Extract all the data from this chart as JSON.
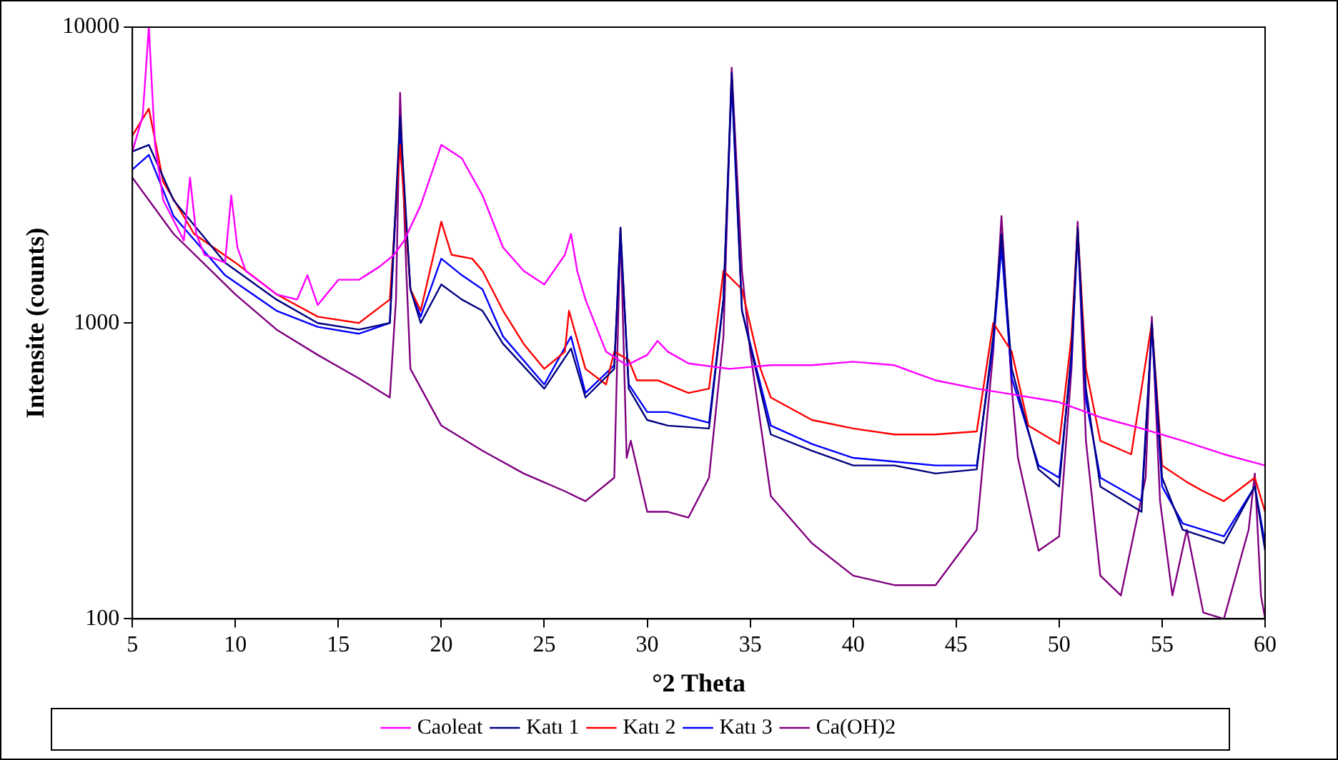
{
  "chart_data": {
    "type": "line",
    "xlabel": "°2 Theta",
    "ylabel": "Intensite (counts)",
    "xlim": [
      5,
      60
    ],
    "ylim": [
      100,
      10000
    ],
    "xticks": [
      5,
      10,
      15,
      20,
      25,
      30,
      35,
      40,
      45,
      50,
      55,
      60
    ],
    "yticks": [
      100,
      1000,
      10000
    ],
    "log": "y",
    "legend": "bottom",
    "series": [
      {
        "name": "Caoleat",
        "color": "#ff00ff",
        "x": [
          5,
          5.5,
          5.8,
          6.1,
          6.5,
          7.5,
          7.8,
          8.1,
          8.5,
          9.5,
          9.8,
          10.1,
          10.5,
          12,
          13,
          13.5,
          14,
          15,
          16,
          17,
          17.7,
          18.2,
          19,
          20,
          21,
          22,
          23,
          24,
          25,
          26,
          26.3,
          26.6,
          27,
          28,
          29,
          30,
          30.5,
          31,
          32,
          34,
          36,
          38,
          40,
          42,
          44,
          46,
          48,
          50,
          52,
          54,
          56,
          58,
          60
        ],
        "values": [
          3800,
          5000,
          10000,
          4000,
          2600,
          1900,
          3100,
          2000,
          1700,
          1600,
          2700,
          1800,
          1500,
          1250,
          1200,
          1450,
          1150,
          1400,
          1400,
          1550,
          1700,
          1900,
          2500,
          4000,
          3600,
          2700,
          1800,
          1500,
          1350,
          1700,
          2000,
          1500,
          1200,
          800,
          720,
          780,
          870,
          800,
          730,
          700,
          720,
          720,
          740,
          720,
          640,
          600,
          570,
          540,
          480,
          440,
          400,
          360,
          330
        ]
      },
      {
        "name": "Katı 1",
        "color": "#000080",
        "x": [
          5,
          5.8,
          7,
          9.5,
          12,
          14,
          16,
          17.5,
          18,
          18.5,
          19,
          20,
          21,
          22,
          23,
          25,
          26.3,
          27,
          28.4,
          28.7,
          29.1,
          30,
          31,
          33,
          33.7,
          34.1,
          34.6,
          36,
          38,
          40,
          42,
          44,
          46,
          46.8,
          47.2,
          47.7,
          49,
          50,
          50.6,
          50.9,
          51.3,
          52,
          54,
          54.5,
          55,
          56,
          58,
          59.5,
          60
        ],
        "values": [
          3800,
          4000,
          2600,
          1600,
          1200,
          1000,
          950,
          1000,
          5000,
          1300,
          1000,
          1350,
          1200,
          1100,
          850,
          600,
          820,
          560,
          700,
          2100,
          600,
          470,
          450,
          440,
          1200,
          7000,
          1100,
          420,
          370,
          330,
          330,
          310,
          320,
          900,
          2000,
          700,
          320,
          280,
          800,
          2100,
          600,
          280,
          230,
          1000,
          300,
          200,
          180,
          280,
          170
        ]
      },
      {
        "name": "Katı 2",
        "color": "#ff0000",
        "x": [
          5,
          5.8,
          6.5,
          8,
          10,
          12,
          14,
          16,
          17.5,
          18,
          18.5,
          19,
          20,
          20.5,
          21.5,
          22,
          23,
          24,
          25,
          26,
          26.2,
          27,
          28,
          28.4,
          28.7,
          29.1,
          29.5,
          30.5,
          32,
          33,
          33.7,
          34.1,
          34.6,
          35.5,
          36,
          38,
          40,
          42,
          44,
          46,
          46.8,
          47.2,
          47.7,
          48.5,
          50,
          50.6,
          50.9,
          51.3,
          52,
          53.5,
          54.5,
          55,
          56.2,
          57,
          58,
          59.5,
          60
        ],
        "values": [
          4300,
          5300,
          3000,
          2000,
          1600,
          1250,
          1050,
          1000,
          1200,
          4000,
          1300,
          1100,
          2200,
          1700,
          1650,
          1500,
          1100,
          850,
          700,
          800,
          1100,
          700,
          620,
          800,
          null,
          750,
          640,
          640,
          580,
          600,
          1500,
          null,
          1300,
          700,
          560,
          470,
          440,
          420,
          420,
          430,
          1000,
          null,
          800,
          450,
          390,
          900,
          2100,
          700,
          400,
          360,
          1000,
          330,
          290,
          270,
          250,
          300,
          230
        ]
      },
      {
        "name": "Katı 3",
        "color": "#0000ff",
        "x": [
          5,
          5.8,
          7,
          9.5,
          12,
          14,
          16,
          17.5,
          18,
          18.5,
          19,
          20,
          21,
          22,
          23,
          25,
          26.3,
          27,
          28.4,
          28.7,
          29.1,
          30,
          31,
          33,
          33.7,
          34.1,
          34.6,
          36,
          38,
          40,
          42,
          44,
          46,
          46.8,
          47.2,
          47.7,
          49,
          50,
          50.6,
          50.9,
          51.3,
          52,
          54,
          54.5,
          55,
          56,
          58,
          59.5,
          60
        ],
        "values": [
          3300,
          3700,
          2300,
          1450,
          1100,
          970,
          920,
          1000,
          4500,
          1300,
          1050,
          1650,
          1450,
          1300,
          900,
          620,
          900,
          580,
          720,
          2000,
          620,
          500,
          500,
          460,
          1200,
          6500,
          1100,
          450,
          390,
          350,
          340,
          330,
          330,
          850,
          1800,
          650,
          330,
          300,
          750,
          2000,
          550,
          300,
          250,
          950,
          280,
          210,
          190,
          280,
          180
        ]
      },
      {
        "name": "Ca(OH)2",
        "color": "#800080",
        "x": [
          5,
          7,
          10,
          12,
          14,
          16,
          17.5,
          17.8,
          18,
          18.3,
          18.5,
          20,
          22,
          24,
          26,
          27,
          28.4,
          28.7,
          29,
          29.2,
          30,
          31,
          32,
          33,
          33.7,
          34.1,
          34.6,
          35,
          36,
          38,
          40,
          42,
          44,
          46,
          46.8,
          47.2,
          47.7,
          48,
          49,
          50,
          50.6,
          50.9,
          51.3,
          52,
          53,
          54.2,
          54.5,
          54.9,
          55.5,
          56.2,
          57,
          58,
          59.2,
          59.5,
          59.8,
          60
        ],
        "values": [
          3100,
          2000,
          1250,
          950,
          780,
          650,
          560,
          1200,
          6000,
          1500,
          700,
          450,
          370,
          310,
          270,
          250,
          300,
          2100,
          350,
          400,
          230,
          230,
          220,
          300,
          900,
          7300,
          1500,
          800,
          260,
          180,
          140,
          130,
          130,
          200,
          800,
          2300,
          600,
          350,
          170,
          190,
          700,
          2200,
          400,
          140,
          120,
          300,
          1050,
          250,
          120,
          200,
          105,
          100,
          200,
          310,
          120,
          100
        ]
      }
    ]
  }
}
